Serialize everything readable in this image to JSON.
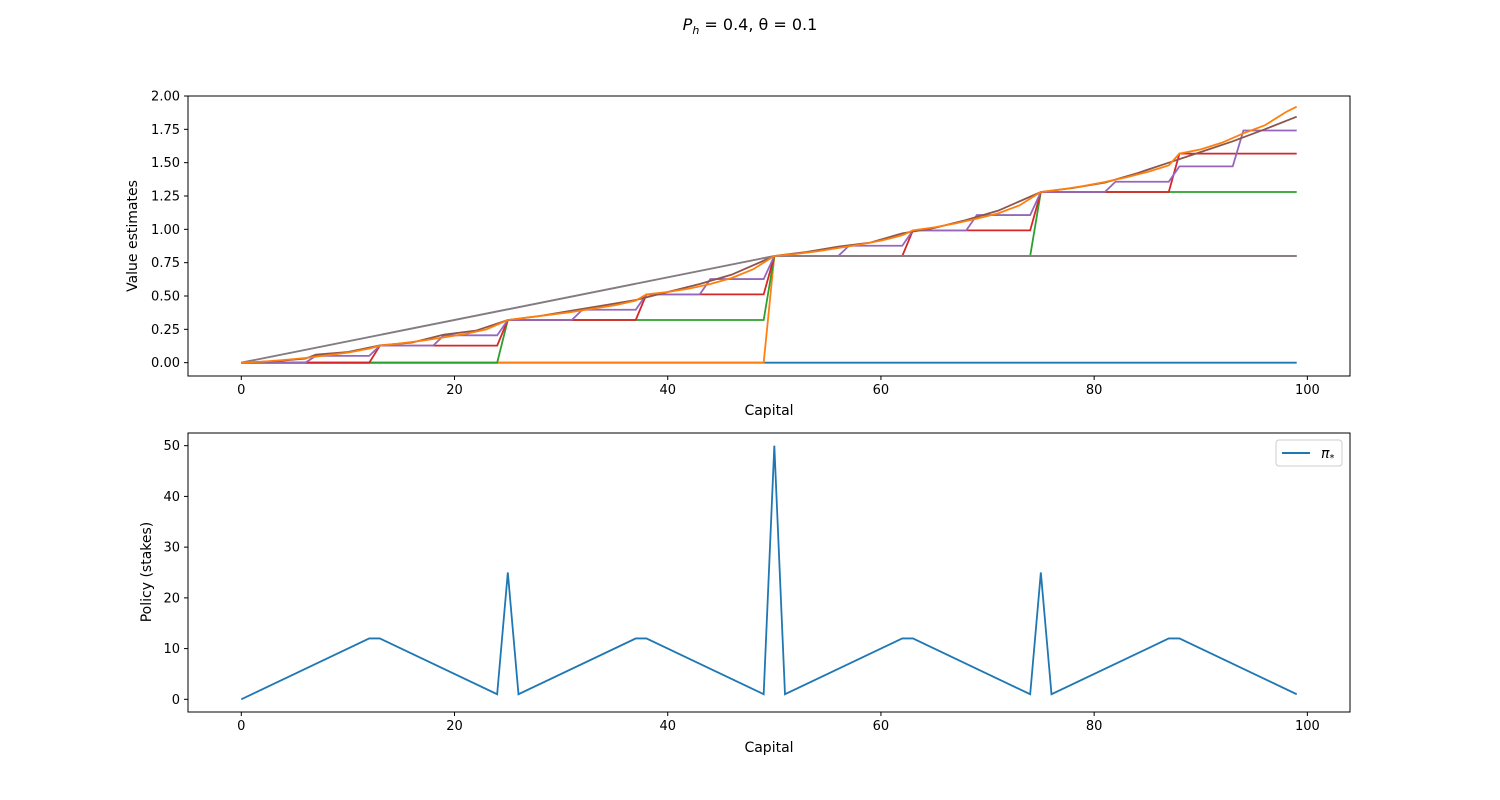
{
  "figure": {
    "title_main": "P",
    "title_sub": "h",
    "title_rest": " = 0.4, θ = 0.1"
  },
  "chart_data": [
    {
      "type": "line",
      "title": "",
      "xlabel": "Capital",
      "ylabel": "Value estimates",
      "xlim": [
        -5,
        104
      ],
      "ylim": [
        -0.1,
        2.0
      ],
      "xticks": [
        0,
        20,
        40,
        60,
        80,
        100
      ],
      "yticks": [
        0.0,
        0.25,
        0.5,
        0.75,
        1.0,
        1.25,
        1.5,
        1.75,
        2.0
      ],
      "ytick_labels": [
        "0.00",
        "0.25",
        "0.50",
        "0.75",
        "1.00",
        "1.25",
        "1.50",
        "1.75",
        "2.00"
      ],
      "grid": false,
      "legend": null,
      "colors": [
        "#1f77b4",
        "#ff7f0e",
        "#2ca02c",
        "#d62728",
        "#9467bd",
        "#8c564b",
        "#e377c2",
        "#7f7f7f",
        "#ff7f0e"
      ],
      "series": [
        {
          "points": [
            [
              0,
              0
            ],
            [
              99,
              0
            ]
          ]
        },
        {
          "points": [
            [
              0,
              0
            ],
            [
              49,
              0
            ],
            [
              50,
              0.8
            ],
            [
              99,
              0.8
            ]
          ]
        },
        {
          "points": [
            [
              0,
              0
            ],
            [
              24,
              0
            ],
            [
              25,
              0.32
            ],
            [
              49,
              0.32
            ],
            [
              50,
              0.8
            ],
            [
              74,
              0.8
            ],
            [
              75,
              1.28
            ],
            [
              99,
              1.28
            ]
          ]
        },
        {
          "points": [
            [
              0,
              0
            ],
            [
              12,
              0
            ],
            [
              13,
              0.128
            ],
            [
              24,
              0.128
            ],
            [
              25,
              0.32
            ],
            [
              37,
              0.32
            ],
            [
              38,
              0.512
            ],
            [
              49,
              0.512
            ],
            [
              50,
              0.8
            ],
            [
              62,
              0.8
            ],
            [
              63,
              0.992
            ],
            [
              74,
              0.992
            ],
            [
              75,
              1.28
            ],
            [
              87,
              1.28
            ],
            [
              88,
              1.568
            ],
            [
              99,
              1.568
            ]
          ]
        },
        {
          "points": [
            [
              0,
              0
            ],
            [
              6,
              0
            ],
            [
              7,
              0.051
            ],
            [
              12,
              0.051
            ],
            [
              13,
              0.128
            ],
            [
              18,
              0.128
            ],
            [
              19,
              0.205
            ],
            [
              24,
              0.205
            ],
            [
              25,
              0.32
            ],
            [
              31,
              0.32
            ],
            [
              32,
              0.397
            ],
            [
              37,
              0.397
            ],
            [
              38,
              0.512
            ],
            [
              43,
              0.512
            ],
            [
              44,
              0.627
            ],
            [
              49,
              0.627
            ],
            [
              50,
              0.8
            ],
            [
              56,
              0.8
            ],
            [
              57,
              0.877
            ],
            [
              62,
              0.877
            ],
            [
              63,
              0.992
            ],
            [
              68,
              0.992
            ],
            [
              69,
              1.107
            ],
            [
              74,
              1.107
            ],
            [
              75,
              1.28
            ],
            [
              81,
              1.28
            ],
            [
              82,
              1.357
            ],
            [
              87,
              1.357
            ],
            [
              88,
              1.472
            ],
            [
              93,
              1.472
            ],
            [
              94,
              1.741
            ],
            [
              99,
              1.741
            ]
          ]
        },
        {
          "points": [
            [
              0,
              0
            ],
            [
              3,
              0.01
            ],
            [
              6,
              0.03
            ],
            [
              7,
              0.06
            ],
            [
              10,
              0.08
            ],
            [
              13,
              0.13
            ],
            [
              16,
              0.15
            ],
            [
              19,
              0.21
            ],
            [
              22,
              0.24
            ],
            [
              25,
              0.32
            ],
            [
              28,
              0.35
            ],
            [
              31,
              0.39
            ],
            [
              34,
              0.43
            ],
            [
              37,
              0.47
            ],
            [
              40,
              0.53
            ],
            [
              43,
              0.59
            ],
            [
              46,
              0.66
            ],
            [
              50,
              0.8
            ],
            [
              53,
              0.83
            ],
            [
              56,
              0.87
            ],
            [
              59,
              0.9
            ],
            [
              62,
              0.97
            ],
            [
              65,
              1.01
            ],
            [
              68,
              1.07
            ],
            [
              71,
              1.14
            ],
            [
              75,
              1.28
            ],
            [
              78,
              1.31
            ],
            [
              81,
              1.35
            ],
            [
              84,
              1.42
            ],
            [
              87,
              1.5
            ],
            [
              90,
              1.58
            ],
            [
              93,
              1.66
            ],
            [
              96,
              1.75
            ],
            [
              99,
              1.845
            ]
          ]
        },
        {
          "points": [
            [
              0,
              0
            ],
            [
              50,
              0.8
            ],
            [
              99,
              0.8
            ]
          ]
        },
        {
          "points": [
            [
              0,
              0
            ],
            [
              50,
              0.8
            ],
            [
              99,
              0.8
            ]
          ]
        },
        {
          "points": [
            [
              0,
              0
            ],
            [
              2,
              0.008
            ],
            [
              4,
              0.02
            ],
            [
              6,
              0.035
            ],
            [
              8,
              0.055
            ],
            [
              10,
              0.075
            ],
            [
              12,
              0.105
            ],
            [
              13,
              0.128
            ],
            [
              15,
              0.145
            ],
            [
              17,
              0.165
            ],
            [
              19,
              0.19
            ],
            [
              21,
              0.215
            ],
            [
              23,
              0.25
            ],
            [
              25,
              0.32
            ],
            [
              27,
              0.34
            ],
            [
              29,
              0.36
            ],
            [
              31,
              0.38
            ],
            [
              33,
              0.405
            ],
            [
              35,
              0.43
            ],
            [
              37,
              0.465
            ],
            [
              38,
              0.512
            ],
            [
              40,
              0.53
            ],
            [
              42,
              0.555
            ],
            [
              44,
              0.59
            ],
            [
              46,
              0.635
            ],
            [
              48,
              0.7
            ],
            [
              50,
              0.8
            ],
            [
              52,
              0.815
            ],
            [
              54,
              0.835
            ],
            [
              56,
              0.86
            ],
            [
              58,
              0.885
            ],
            [
              60,
              0.915
            ],
            [
              62,
              0.955
            ],
            [
              63,
              0.992
            ],
            [
              65,
              1.015
            ],
            [
              67,
              1.045
            ],
            [
              69,
              1.08
            ],
            [
              71,
              1.12
            ],
            [
              73,
              1.18
            ],
            [
              75,
              1.28
            ],
            [
              77,
              1.3
            ],
            [
              79,
              1.325
            ],
            [
              81,
              1.355
            ],
            [
              83,
              1.39
            ],
            [
              85,
              1.43
            ],
            [
              87,
              1.48
            ],
            [
              88,
              1.568
            ],
            [
              90,
              1.6
            ],
            [
              92,
              1.65
            ],
            [
              94,
              1.72
            ],
            [
              96,
              1.78
            ],
            [
              98,
              1.88
            ],
            [
              99,
              1.92
            ]
          ]
        }
      ]
    },
    {
      "type": "line",
      "title": "",
      "xlabel": "Capital",
      "ylabel": "Policy (stakes)",
      "xlim": [
        -5,
        104
      ],
      "ylim": [
        -2.5,
        52.5
      ],
      "xticks": [
        0,
        20,
        40,
        60,
        80,
        100
      ],
      "yticks": [
        0,
        10,
        20,
        30,
        40,
        50
      ],
      "grid": false,
      "legend": "top-right",
      "series": [
        {
          "name": "π*",
          "name_main": "π",
          "name_sub": "*",
          "color": "#1f77b4",
          "points": [
            [
              0,
              0
            ],
            [
              12,
              12
            ],
            [
              13,
              12
            ],
            [
              24,
              1
            ],
            [
              25,
              25
            ],
            [
              26,
              1
            ],
            [
              37,
              12
            ],
            [
              38,
              12
            ],
            [
              49,
              1
            ],
            [
              50,
              50
            ],
            [
              51,
              1
            ],
            [
              62,
              12
            ],
            [
              63,
              12
            ],
            [
              74,
              1
            ],
            [
              75,
              25
            ],
            [
              76,
              1
            ],
            [
              87,
              12
            ],
            [
              88,
              12
            ],
            [
              99,
              1
            ]
          ]
        }
      ]
    }
  ]
}
